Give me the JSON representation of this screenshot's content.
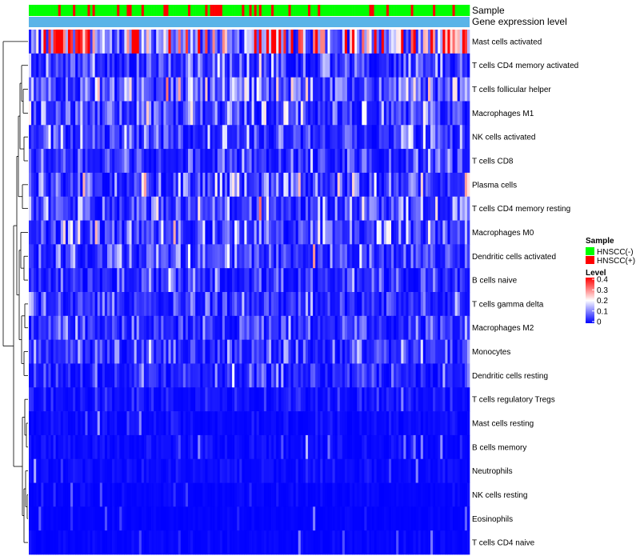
{
  "chart_data": {
    "type": "heatmap",
    "title": "",
    "annotation_tracks": [
      {
        "name": "Sample",
        "legend_title": "Sample"
      },
      {
        "name": "Gene expression level",
        "legend_title": ""
      }
    ],
    "sample_groups": [
      {
        "label": "HNSCC(-)",
        "color": "#00ff00"
      },
      {
        "label": "HNSCC(+)",
        "color": "#ff0000"
      }
    ],
    "gene_expression_color": "#5ab4e8",
    "rows": [
      {
        "name": "Mast cells activated",
        "mean": 0.26
      },
      {
        "name": "T cells CD4 memory activated",
        "mean": 0.06
      },
      {
        "name": "T cells follicular helper",
        "mean": 0.1
      },
      {
        "name": "Macrophages M1",
        "mean": 0.07
      },
      {
        "name": "NK cells activated",
        "mean": 0.07
      },
      {
        "name": "T cells CD8",
        "mean": 0.05
      },
      {
        "name": "Plasma cells",
        "mean": 0.08
      },
      {
        "name": "T cells CD4 memory resting",
        "mean": 0.07
      },
      {
        "name": "Macrophages M0",
        "mean": 0.08
      },
      {
        "name": "Dendritic cells activated",
        "mean": 0.06
      },
      {
        "name": "B cells naive",
        "mean": 0.05
      },
      {
        "name": "T cells gamma delta",
        "mean": 0.05
      },
      {
        "name": "Macrophages M2",
        "mean": 0.05
      },
      {
        "name": "Monocytes",
        "mean": 0.05
      },
      {
        "name": "Dendritic cells resting",
        "mean": 0.04
      },
      {
        "name": "T cells regulatory  Tregs",
        "mean": 0.02
      },
      {
        "name": "Mast cells resting",
        "mean": 0.01
      },
      {
        "name": "B cells memory",
        "mean": 0.01
      },
      {
        "name": "Neutrophils",
        "mean": 0.01
      },
      {
        "name": "NK cells resting",
        "mean": 0.005
      },
      {
        "name": "Eosinophils",
        "mean": 0.003
      },
      {
        "name": "T cells CD4 naive",
        "mean": 0.005
      }
    ],
    "n_samples": 180,
    "legend": {
      "sample_title": "Sample",
      "level_title": "Level",
      "level_ticks": [
        "0.4",
        "0.3",
        "0.2",
        "0.1",
        "0"
      ],
      "level_range": [
        0,
        0.4
      ],
      "color_stops": [
        {
          "value": 0,
          "color": "#0000ff"
        },
        {
          "value": 0.2,
          "color": "#ffffff"
        },
        {
          "value": 0.4,
          "color": "#ff0000"
        }
      ]
    }
  }
}
